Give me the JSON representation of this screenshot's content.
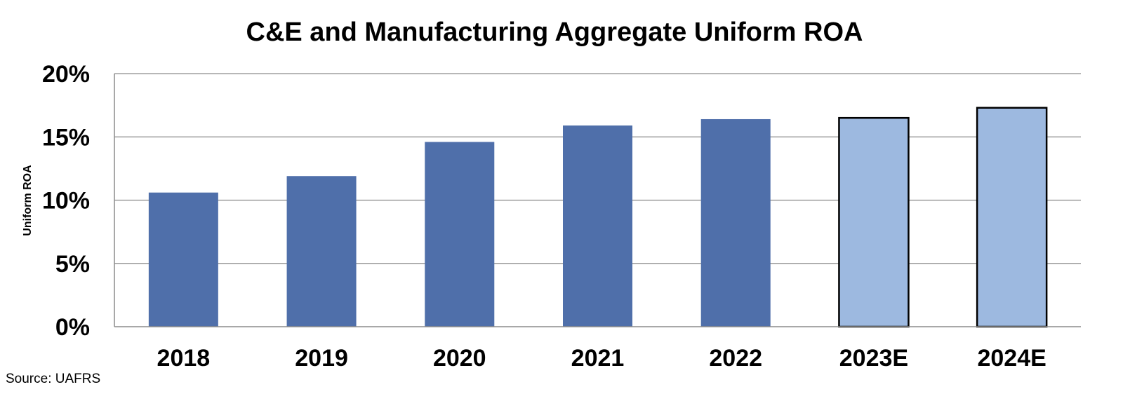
{
  "chart_data": {
    "type": "bar",
    "title": "C&E and Manufacturing Aggregate Uniform ROA",
    "xlabel": "",
    "ylabel": "Uniform ROA",
    "categories": [
      "2018",
      "2019",
      "2020",
      "2021",
      "2022",
      "2023E",
      "2024E"
    ],
    "values": [
      10.6,
      11.9,
      14.6,
      15.9,
      16.4,
      16.5,
      17.3
    ],
    "estimate": [
      false,
      false,
      false,
      false,
      false,
      true,
      true
    ],
    "ylim": [
      0,
      20
    ],
    "yticks": [
      0,
      5,
      10,
      15,
      20
    ],
    "ytick_labels": [
      "0%",
      "5%",
      "10%",
      "15%",
      "20%"
    ],
    "grid": true,
    "legend": "none",
    "colors": {
      "actual": "#4F6FAA",
      "estimate": "#9DB9E0",
      "estimate_border": "#000000",
      "grid": "#8C8C8C"
    },
    "source": "Source: UAFRS"
  }
}
